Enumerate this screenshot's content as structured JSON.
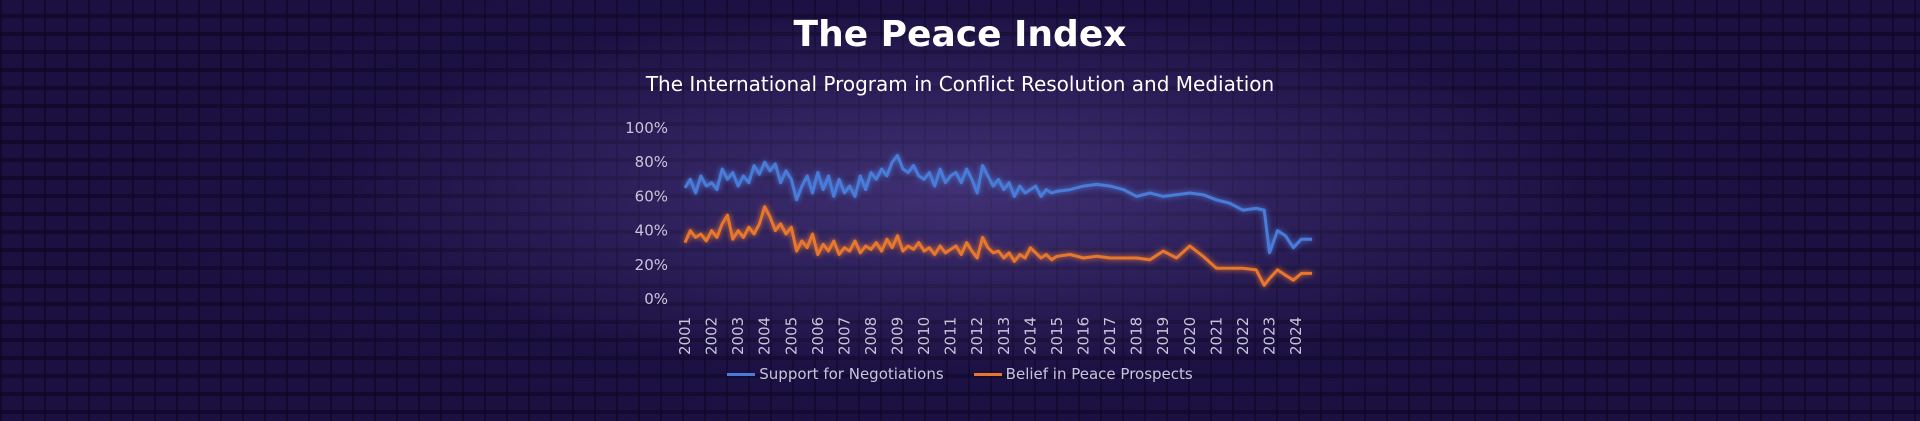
{
  "header": {
    "title": "The Peace Index",
    "subtitle": "The International Program in Conflict Resolution and Mediation"
  },
  "chart_data": {
    "type": "line",
    "title": "The Peace Index",
    "subtitle": "The International Program in Conflict Resolution and Mediation",
    "xlabel": "",
    "ylabel": "",
    "xlim": [
      2001,
      2024.6
    ],
    "ylim": [
      0,
      100
    ],
    "y_ticks": [
      "0%",
      "20%",
      "40%",
      "60%",
      "80%",
      "100%"
    ],
    "x_ticks": [
      "2001",
      "2002",
      "2003",
      "2004",
      "2005",
      "2006",
      "2007",
      "2008",
      "2009",
      "2010",
      "2011",
      "2012",
      "2013",
      "2014",
      "2015",
      "2016",
      "2017",
      "2018",
      "2019",
      "2020",
      "2021",
      "2022",
      "2023",
      "2024"
    ],
    "grid": false,
    "legend_position": "bottom",
    "series": [
      {
        "name": "Support for Negotiations",
        "color": "#4a7bd8",
        "x": [
          2001.0,
          2001.2,
          2001.4,
          2001.6,
          2001.8,
          2002.0,
          2002.2,
          2002.4,
          2002.6,
          2002.8,
          2003.0,
          2003.2,
          2003.4,
          2003.6,
          2003.8,
          2004.0,
          2004.2,
          2004.4,
          2004.6,
          2004.8,
          2005.0,
          2005.2,
          2005.4,
          2005.6,
          2005.8,
          2006.0,
          2006.2,
          2006.4,
          2006.6,
          2006.8,
          2007.0,
          2007.2,
          2007.4,
          2007.6,
          2007.8,
          2008.0,
          2008.2,
          2008.4,
          2008.6,
          2008.8,
          2009.0,
          2009.2,
          2009.4,
          2009.6,
          2009.8,
          2010.0,
          2010.2,
          2010.4,
          2010.6,
          2010.8,
          2011.0,
          2011.2,
          2011.4,
          2011.6,
          2011.8,
          2012.0,
          2012.2,
          2012.4,
          2012.6,
          2012.8,
          2013.0,
          2013.2,
          2013.4,
          2013.6,
          2013.8,
          2014.0,
          2014.2,
          2014.4,
          2014.6,
          2014.8,
          2015.0,
          2015.5,
          2016.0,
          2016.5,
          2017.0,
          2017.5,
          2018.0,
          2018.5,
          2019.0,
          2019.5,
          2020.0,
          2020.5,
          2021.0,
          2021.5,
          2022.0,
          2022.5,
          2022.8,
          2023.0,
          2023.3,
          2023.6,
          2023.9,
          2024.2,
          2024.6
        ],
        "values": [
          65,
          70,
          62,
          72,
          66,
          68,
          64,
          76,
          70,
          74,
          66,
          72,
          68,
          78,
          73,
          80,
          75,
          79,
          68,
          75,
          70,
          58,
          66,
          72,
          62,
          74,
          64,
          72,
          60,
          70,
          62,
          66,
          60,
          72,
          64,
          74,
          70,
          76,
          72,
          80,
          84,
          76,
          74,
          78,
          72,
          70,
          74,
          66,
          76,
          68,
          72,
          74,
          68,
          76,
          70,
          62,
          78,
          72,
          66,
          70,
          64,
          68,
          60,
          66,
          62,
          64,
          66,
          60,
          64,
          62,
          63,
          64,
          66,
          67,
          66,
          64,
          60,
          62,
          60,
          61,
          62,
          61,
          58,
          56,
          52,
          53,
          52,
          27,
          40,
          37,
          30,
          35,
          35
        ]
      },
      {
        "name": "Belief in Peace Prospects",
        "color": "#e8772e",
        "x": [
          2001.0,
          2001.2,
          2001.4,
          2001.6,
          2001.8,
          2002.0,
          2002.2,
          2002.4,
          2002.6,
          2002.8,
          2003.0,
          2003.2,
          2003.4,
          2003.6,
          2003.8,
          2004.0,
          2004.2,
          2004.4,
          2004.6,
          2004.8,
          2005.0,
          2005.2,
          2005.4,
          2005.6,
          2005.8,
          2006.0,
          2006.2,
          2006.4,
          2006.6,
          2006.8,
          2007.0,
          2007.2,
          2007.4,
          2007.6,
          2007.8,
          2008.0,
          2008.2,
          2008.4,
          2008.6,
          2008.8,
          2009.0,
          2009.2,
          2009.4,
          2009.6,
          2009.8,
          2010.0,
          2010.2,
          2010.4,
          2010.6,
          2010.8,
          2011.0,
          2011.2,
          2011.4,
          2011.6,
          2011.8,
          2012.0,
          2012.2,
          2012.4,
          2012.6,
          2012.8,
          2013.0,
          2013.2,
          2013.4,
          2013.6,
          2013.8,
          2014.0,
          2014.2,
          2014.4,
          2014.6,
          2014.8,
          2015.0,
          2015.5,
          2016.0,
          2016.5,
          2017.0,
          2017.5,
          2018.0,
          2018.5,
          2019.0,
          2019.5,
          2020.0,
          2020.5,
          2021.0,
          2021.5,
          2022.0,
          2022.5,
          2022.8,
          2023.0,
          2023.3,
          2023.6,
          2023.9,
          2024.2,
          2024.6
        ],
        "values": [
          33,
          40,
          36,
          38,
          34,
          40,
          36,
          44,
          49,
          35,
          40,
          36,
          42,
          38,
          44,
          54,
          48,
          40,
          44,
          38,
          42,
          28,
          34,
          30,
          38,
          26,
          32,
          28,
          34,
          26,
          30,
          28,
          34,
          27,
          31,
          29,
          33,
          28,
          35,
          30,
          37,
          28,
          31,
          29,
          33,
          28,
          30,
          26,
          31,
          27,
          29,
          31,
          26,
          33,
          28,
          24,
          36,
          30,
          27,
          28,
          24,
          27,
          22,
          26,
          24,
          30,
          27,
          24,
          26,
          23,
          25,
          26,
          24,
          25,
          24,
          24,
          24,
          23,
          28,
          24,
          31,
          25,
          18,
          18,
          18,
          17,
          8,
          12,
          17,
          14,
          11,
          15,
          15
        ]
      }
    ]
  }
}
